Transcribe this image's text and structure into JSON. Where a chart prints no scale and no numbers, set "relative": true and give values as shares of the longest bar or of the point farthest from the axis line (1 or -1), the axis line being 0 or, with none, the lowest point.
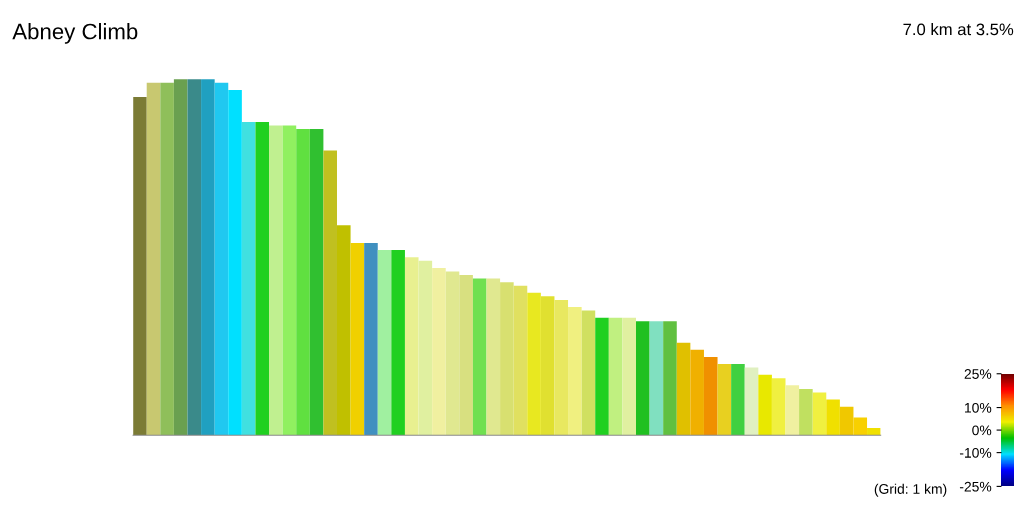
{
  "chart_data": {
    "type": "bar",
    "title": "Abney Climb",
    "subtitle": "7.0 km at 3.5%",
    "relative": true,
    "categories": [
      null,
      null,
      null,
      null,
      null,
      null,
      null,
      null,
      null,
      null,
      null,
      null,
      null,
      null,
      null,
      null,
      null,
      null,
      null,
      null,
      null,
      null,
      null,
      null,
      null,
      null,
      null,
      null,
      null,
      null,
      null,
      null,
      null,
      null,
      null,
      null,
      null,
      null,
      null,
      null,
      null,
      null,
      null,
      null,
      null,
      null,
      null,
      null,
      null,
      null,
      null,
      null,
      null,
      null,
      null
    ],
    "values": [
      0.95,
      0.99,
      0.99,
      1.0,
      1.0,
      1.0,
      0.99,
      0.97,
      0.88,
      0.88,
      0.87,
      0.87,
      0.86,
      0.86,
      0.8,
      0.59,
      0.54,
      0.54,
      0.52,
      0.52,
      0.5,
      0.49,
      0.47,
      0.46,
      0.45,
      0.44,
      0.44,
      0.43,
      0.42,
      0.4,
      0.39,
      0.38,
      0.36,
      0.35,
      0.33,
      0.33,
      0.33,
      0.32,
      0.32,
      0.32,
      0.26,
      0.24,
      0.22,
      0.2,
      0.2,
      0.19,
      0.17,
      0.16,
      0.14,
      0.13,
      0.12,
      0.1,
      0.08,
      0.05,
      0.02
    ],
    "colors": [
      "#7b7b35",
      "#c8c870",
      "#8fbf5a",
      "#6aa050",
      "#3a8a8a",
      "#20a0c0",
      "#20c8f0",
      "#00e0ff",
      "#40e0e0",
      "#20d020",
      "#c0f090",
      "#90f060",
      "#60e040",
      "#30c030",
      "#c0c020",
      "#c0c000",
      "#f0d000",
      "#4090c0",
      "#a0f0a0",
      "#20d020",
      "#e8f090",
      "#e0f0a0",
      "#f0f0a0",
      "#e0e890",
      "#d8e080",
      "#70e050",
      "#e0e890",
      "#d8e070",
      "#e0e060",
      "#e8e820",
      "#e0e030",
      "#e8e860",
      "#f0f080",
      "#d0e060",
      "#20d020",
      "#c0f080",
      "#e0f0a0",
      "#20c020",
      "#80e0c0",
      "#60c040",
      "#e0c000",
      "#f0b000",
      "#f09000",
      "#e8d020",
      "#40d040",
      "#e0f0c0",
      "#e8e800",
      "#f0f040",
      "#f0f0a0",
      "#c0e060",
      "#f0f040",
      "#f0e000",
      "#f0c800",
      "#f8d000",
      "#f0e000"
    ],
    "clim": [
      -25,
      25
    ],
    "cticks": [
      {
        "value": 25,
        "label": "25%"
      },
      {
        "value": 10,
        "label": "10%"
      },
      {
        "value": 0,
        "label": "0%"
      },
      {
        "value": -10,
        "label": "-10%"
      },
      {
        "value": -25,
        "label": "-25%"
      }
    ],
    "annotations": [
      "(Grid: 1 km)"
    ],
    "grid": false,
    "legend": false
  }
}
